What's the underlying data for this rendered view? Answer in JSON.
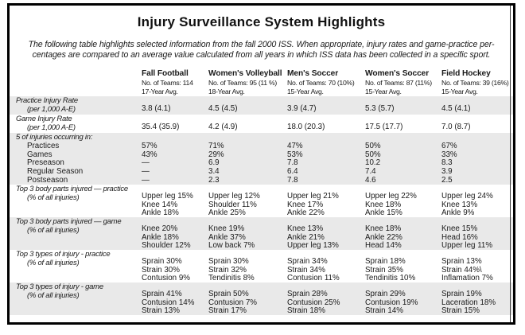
{
  "style": {
    "stripe_gray": "#e9e9e9",
    "frame_border": "#000000",
    "text": "#1a1a1a"
  },
  "page": {
    "title": "Injury Surveillance System Highlights",
    "subtitle_line1": "The following table highlights selected information from the fall 2000 ISS. When appropriate, injury rates and game-practice per-",
    "subtitle_line2": "centages are compared to an average value calculated from all years in which ISS data has been collected in a specific sport."
  },
  "columns": [
    {
      "sport": "Fall Football",
      "teams": "No. of Teams: 114",
      "avg": "17-Year Avg."
    },
    {
      "sport": "Women's Volleyball",
      "teams": "No. of Teams: 95 (11 %)",
      "avg": "18-Year Avg."
    },
    {
      "sport": "Men's Soccer",
      "teams": "No. of Teams: 70 (10%)",
      "avg": "15-Year Avg."
    },
    {
      "sport": "Women's Soccer",
      "teams": "No. of Teams: 87 (11%)",
      "avg": "15-Year Avg."
    },
    {
      "sport": "Field Hockey",
      "teams": "No. of Teams: 39 (16%)",
      "avg": "15-Year Avg."
    }
  ],
  "rows": {
    "practice_rate": {
      "label": "Practice Injury Rate",
      "sublabel": "(per 1,000 A-E)",
      "values": [
        "3.8 (4.1)",
        "4.5 (4.5)",
        "3.9 (4.7)",
        "5.3 (5.7)",
        "4.5 (4.1)"
      ]
    },
    "game_rate": {
      "label": "Game Injury Rate",
      "sublabel": "(per 1,000 A-E)",
      "values": [
        "35.4 (35.9)",
        "4.2 (4.9)",
        "18.0 (20.3)",
        "17.5 (17.7)",
        "7.0 (8.7)"
      ]
    },
    "occurring": {
      "label": "5 of injuries occurring in:",
      "items": [
        "Practices",
        "Games",
        "Preseason",
        "Regular Season",
        "Postseason"
      ],
      "values": [
        [
          "57%",
          "43%",
          "—",
          "—",
          "—"
        ],
        [
          "71%",
          "29%",
          "6.9",
          "3.4",
          "2.3"
        ],
        [
          "47%",
          "53%",
          "7.8",
          "6.4",
          "7.8"
        ],
        [
          "50%",
          "50%",
          "10.2",
          "7.4",
          "4.6"
        ],
        [
          "67%",
          "33%",
          "8.3",
          "3.9",
          "2.5"
        ]
      ]
    },
    "body_practice": {
      "label": "Top 3 body parts injured — practice",
      "sublabel": "(% of all injuries)",
      "values": [
        [
          "Upper leg 15%",
          "Knee 14%",
          "Ankle 18%"
        ],
        [
          "Upper leg 12%",
          "Shoulder 11%",
          "Ankle 25%"
        ],
        [
          "Upper leg 21%",
          "Knee 17%",
          "Ankle 22%"
        ],
        [
          "Upper leg 22%",
          "Knee 18%",
          "Ankle 15%"
        ],
        [
          "Upper leg 24%",
          "Knee 13%",
          "Ankle 9%"
        ]
      ]
    },
    "body_game": {
      "label": "Top 3 body parts injured — game",
      "sublabel": "(% of all injuries)",
      "values": [
        [
          "Knee 20%",
          "Ankle 18%",
          "Shoulder 12%"
        ],
        [
          "Knee 19%",
          "Ankle 37%",
          "Low back 7%"
        ],
        [
          "Knee 13%",
          "Ankle 21%",
          "Upper leg 13%"
        ],
        [
          "Knee 18%",
          "Ankle 22%",
          "Head 14%"
        ],
        [
          "Knee 15%",
          "Head 16%",
          "Upper leg 11%"
        ]
      ]
    },
    "type_practice": {
      "label": "Top 3 types of injury - practice",
      "sublabel": "(% of all injuries)",
      "values": [
        [
          "Sprain 30%",
          "Strain 30%",
          "Contusion 9%"
        ],
        [
          "Sprain 30%",
          "Strain 32%",
          "Tendinitis 8%"
        ],
        [
          "Sprain 34%",
          "Strain 34%",
          "Contusion 11%"
        ],
        [
          "Sprain 18%",
          "Strain 35%",
          "Tendinitis 10%"
        ],
        [
          "Sprain 13%",
          "Strain 44%\\",
          "Inflamation 7%"
        ]
      ]
    },
    "type_game": {
      "label": "Top 3 types of injury - game",
      "sublabel": "(% of all injuries)",
      "values": [
        [
          "Sprain 41%",
          "Contusion 14%",
          "Strain 13%"
        ],
        [
          "Sprain 50%",
          "Contusion 7%",
          "Strain 17%"
        ],
        [
          "Sprain 28%",
          "Contusion 25%",
          "Strain 18%"
        ],
        [
          "Sprain 29%",
          "Contusion 19%",
          "Strain 14%"
        ],
        [
          "Sprain 19%",
          "Laceration 18%",
          "Strain 15%"
        ]
      ]
    }
  }
}
